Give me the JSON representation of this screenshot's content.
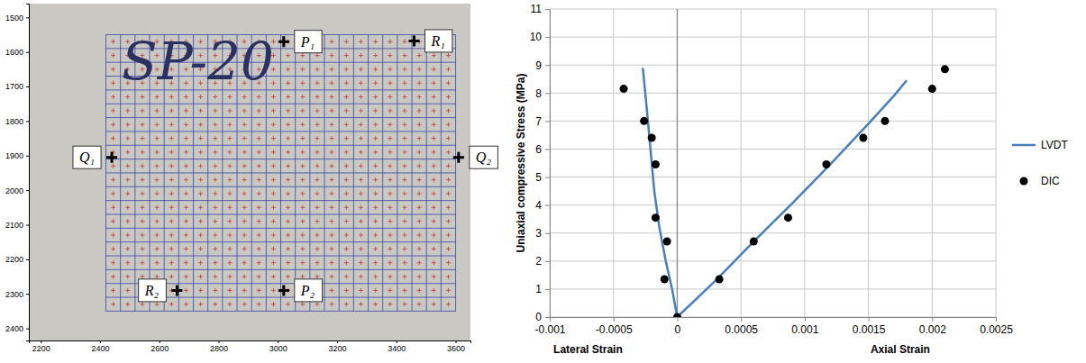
{
  "chart_data": [
    {
      "type": "image_grid",
      "xlim": [
        2160,
        3650
      ],
      "ylim": [
        1460,
        2435
      ],
      "xticks": [
        2200,
        2400,
        2600,
        2800,
        3000,
        3200,
        3400,
        3600
      ],
      "yticks": [
        1500,
        1600,
        1700,
        1800,
        1900,
        2000,
        2100,
        2200,
        2300,
        2400
      ],
      "mesh": {
        "x": [
          2420,
          3600
        ],
        "y": [
          1550,
          2350
        ],
        "nx": 24,
        "ny": 20
      },
      "annotations": [
        {
          "text": "SP-20",
          "x": 2730,
          "y": 1680
        }
      ],
      "points": [
        {
          "label": "P₁",
          "x": 3020,
          "y": 1570
        },
        {
          "label": "R₁",
          "x": 3460,
          "y": 1568
        },
        {
          "label": "Q₁",
          "x": 2440,
          "y": 1905
        },
        {
          "label": "Q₂",
          "x": 3610,
          "y": 1905
        },
        {
          "label": "R₂",
          "x": 2660,
          "y": 2290
        },
        {
          "label": "P₂",
          "x": 3020,
          "y": 2290
        }
      ]
    },
    {
      "type": "line",
      "xlim": [
        -0.001,
        0.0025
      ],
      "ylim": [
        0,
        11
      ],
      "xticks": [
        -0.001,
        -0.0005,
        0,
        0.0005,
        0.001,
        0.0015,
        0.002,
        0.0025
      ],
      "yticks": [
        0,
        1,
        2,
        3,
        4,
        5,
        6,
        7,
        8,
        9,
        10,
        11
      ],
      "grid": true,
      "legend": "right",
      "ylabel": "Uniaxial compressive Stress (MPa)",
      "annotations": [
        {
          "text": "Lateral Strain",
          "x": -0.0007
        },
        {
          "text": "Axial Strain",
          "x": 0.00175
        }
      ],
      "series": [
        {
          "name": "LVDT",
          "type": "line",
          "color": "#4a7ebb",
          "x": [
            -0.00027,
            -0.00024,
            -0.00021,
            -0.00018,
            -0.00014,
            -9e-05,
            -4e-05,
            0,
            0.0003,
            0.0006,
            0.0009,
            0.0012,
            0.0015,
            0.0017,
            0.0018
          ],
          "values": [
            8.9,
            7.5,
            6,
            4.5,
            3.2,
            2,
            1,
            0,
            1.3,
            2.7,
            4.05,
            5.45,
            6.9,
            7.9,
            8.45
          ]
        },
        {
          "name": "DIC",
          "type": "scatter",
          "marker": "circle",
          "color": "#000000",
          "x": [
            -0.00042,
            -0.00026,
            -0.0002,
            -0.00017,
            -0.00017,
            -8e-05,
            -0.0001,
            0,
            0.00033,
            0.0006,
            0.00087,
            0.00117,
            0.00146,
            0.00163,
            0.002,
            0.0021
          ],
          "values": [
            8.15,
            7,
            6.4,
            5.45,
            3.55,
            2.7,
            1.35,
            0,
            1.35,
            2.7,
            3.55,
            5.45,
            6.4,
            7,
            8.15,
            8.85
          ]
        }
      ]
    }
  ]
}
